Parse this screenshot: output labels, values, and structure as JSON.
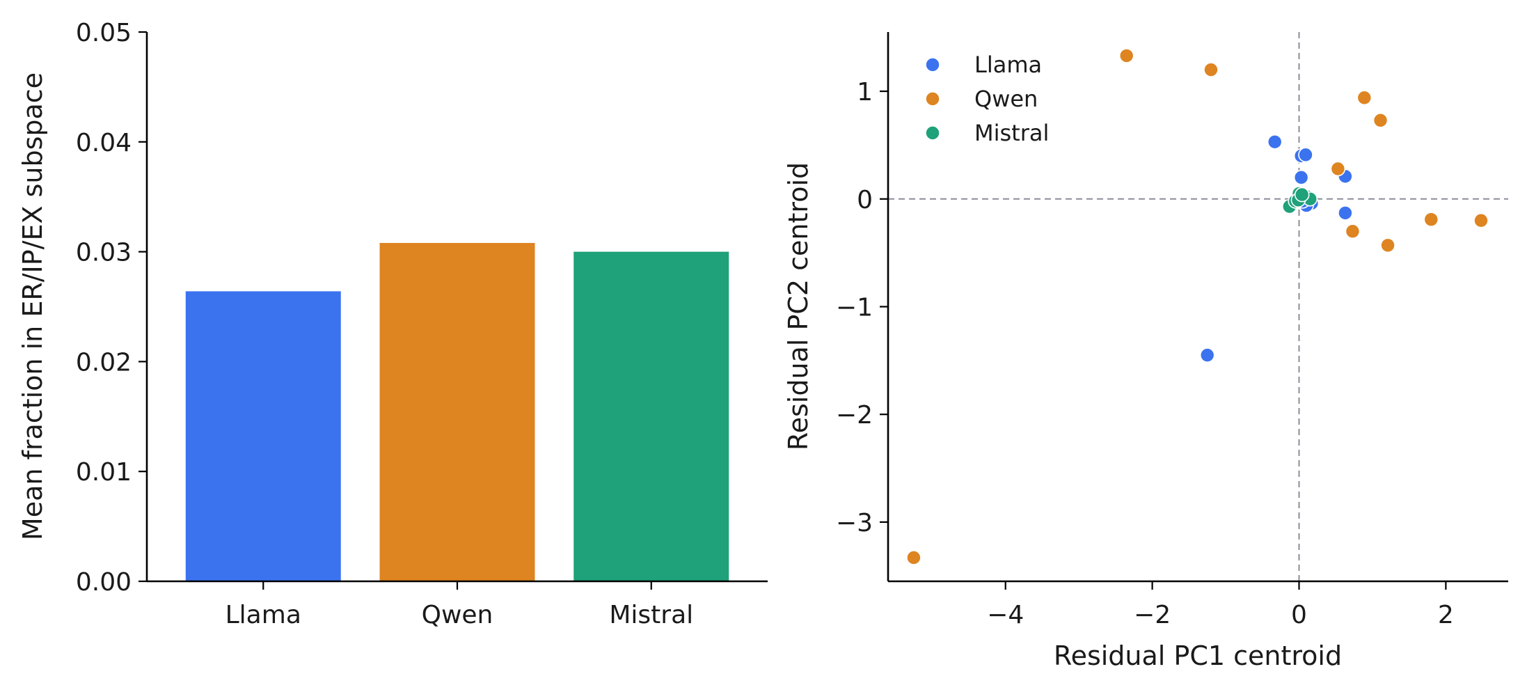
{
  "chart_data": [
    {
      "type": "bar",
      "categories": [
        "Llama",
        "Qwen",
        "Mistral"
      ],
      "values": [
        0.0264,
        0.0308,
        0.03
      ],
      "colors": [
        "#3b73ef",
        "#de8420",
        "#1fa17a"
      ],
      "title": "",
      "xlabel": "",
      "ylabel": "Mean fraction in ER/IP/EX subspace",
      "ylim": [
        0,
        0.05
      ],
      "yticks": [
        0.0,
        0.01,
        0.02,
        0.03,
        0.04,
        0.05
      ],
      "ytick_labels": [
        "0.00",
        "0.01",
        "0.02",
        "0.03",
        "0.04",
        "0.05"
      ],
      "grid": false
    },
    {
      "type": "scatter",
      "title": "",
      "xlabel": "Residual PC1 centroid",
      "ylabel": "Residual PC2 centroid",
      "xlim": [
        -5.6,
        2.85
      ],
      "ylim": [
        -3.55,
        1.55
      ],
      "xticks": [
        -4,
        -2,
        0,
        2
      ],
      "xtick_labels": [
        "−4",
        "−2",
        "0",
        "2"
      ],
      "yticks": [
        -3,
        -2,
        -1,
        0,
        1
      ],
      "ytick_labels": [
        "−3",
        "−2",
        "−1",
        "0",
        "1"
      ],
      "reference_lines": {
        "x": 0,
        "y": 0
      },
      "legend_position": "top-left",
      "grid": false,
      "series": [
        {
          "name": "Llama",
          "color": "#3b73ef",
          "points": [
            [
              -0.33,
              0.53
            ],
            [
              -1.25,
              -1.45
            ],
            [
              0.03,
              0.4
            ],
            [
              0.09,
              0.41
            ],
            [
              0.03,
              0.2
            ],
            [
              0.63,
              0.21
            ],
            [
              0.63,
              -0.13
            ],
            [
              0.17,
              -0.04
            ],
            [
              0.1,
              -0.06
            ],
            [
              0.05,
              -0.02
            ]
          ]
        },
        {
          "name": "Qwen",
          "color": "#de8420",
          "points": [
            [
              -5.25,
              -3.33
            ],
            [
              -2.35,
              1.33
            ],
            [
              -1.2,
              1.2
            ],
            [
              0.89,
              0.94
            ],
            [
              1.11,
              0.73
            ],
            [
              0.53,
              0.28
            ],
            [
              0.73,
              -0.3
            ],
            [
              1.21,
              -0.43
            ],
            [
              1.8,
              -0.19
            ],
            [
              2.48,
              -0.2
            ]
          ]
        },
        {
          "name": "Mistral",
          "color": "#1fa17a",
          "points": [
            [
              -0.13,
              -0.07
            ],
            [
              -0.05,
              -0.02
            ],
            [
              0.0,
              0.05
            ],
            [
              0.05,
              0.02
            ],
            [
              0.11,
              0.02
            ],
            [
              0.15,
              0.0
            ],
            [
              -0.01,
              -0.01
            ],
            [
              0.04,
              0.04
            ]
          ]
        }
      ]
    }
  ]
}
